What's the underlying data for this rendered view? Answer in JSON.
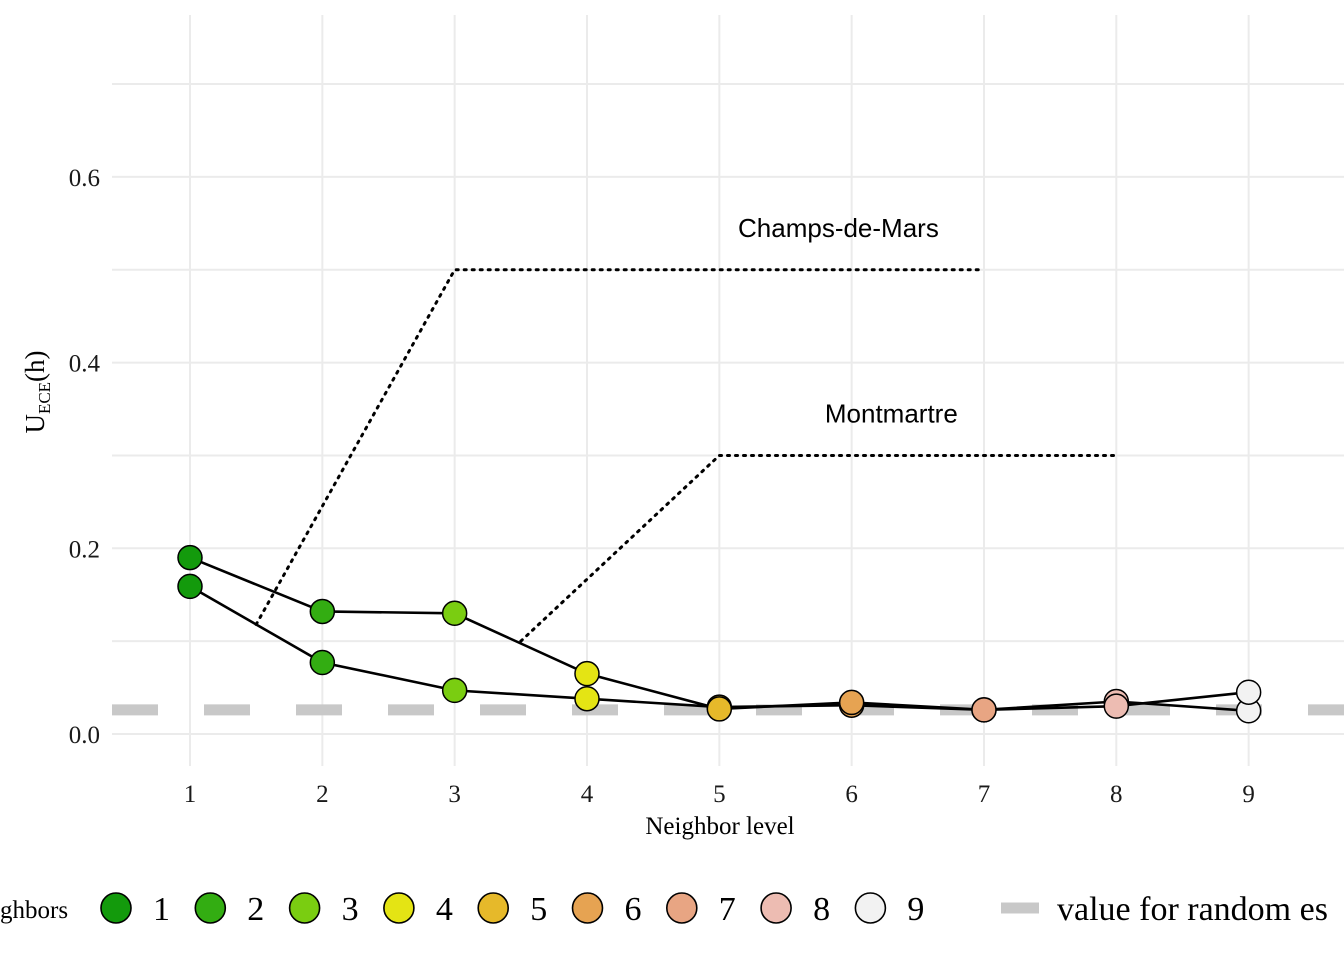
{
  "chart_data": {
    "type": "line",
    "title": "",
    "xlabel": "Neighbor level",
    "ylabel_main": "U",
    "ylabel_sub": "ECE",
    "ylabel_suffix": "(h)",
    "x_ticks": [
      "1",
      "2",
      "3",
      "4",
      "5",
      "6",
      "7",
      "8",
      "9"
    ],
    "y_ticks": [
      "0.0",
      "0.2",
      "0.4",
      "0.6"
    ],
    "xlim": [
      0.4,
      9.6
    ],
    "ylim": [
      -0.03,
      0.72
    ],
    "grid": true,
    "series": [
      {
        "name": "Champs-de-Mars",
        "x": [
          1,
          2,
          3,
          4,
          5,
          6,
          7,
          8,
          9
        ],
        "y": [
          0.159,
          0.077,
          0.047,
          0.038,
          0.029,
          0.031,
          0.026,
          0.035,
          0.025
        ]
      },
      {
        "name": "Montmartre",
        "x": [
          1,
          2,
          3,
          4,
          5,
          6,
          7,
          8,
          9
        ],
        "y": [
          0.19,
          0.132,
          0.13,
          0.065,
          0.027,
          0.034,
          0.026,
          0.03,
          0.045
        ]
      }
    ],
    "reference_line": {
      "label": "value for random es",
      "y": 0.026,
      "color": "#c8c8c8"
    },
    "annotations": [
      {
        "text": "Champs-de-Mars",
        "x": 5.9,
        "y": 0.545
      },
      {
        "text": "Montmartre",
        "x": 6.3,
        "y": 0.345
      }
    ],
    "leader_lines": [
      {
        "points": [
          [
            1.5,
            0.118
          ],
          [
            3.0,
            0.5
          ],
          [
            7.0,
            0.5
          ]
        ]
      },
      {
        "points": [
          [
            3.5,
            0.1
          ],
          [
            5.0,
            0.3
          ],
          [
            8.0,
            0.3
          ]
        ]
      }
    ],
    "legend": {
      "title": "ghbors",
      "placement": "bottom",
      "entries": [
        {
          "label": "1",
          "color": "#139a0c"
        },
        {
          "label": "2",
          "color": "#33ad12"
        },
        {
          "label": "3",
          "color": "#7acd11"
        },
        {
          "label": "4",
          "color": "#e4e414"
        },
        {
          "label": "5",
          "color": "#e6b92a"
        },
        {
          "label": "6",
          "color": "#e6a352"
        },
        {
          "label": "7",
          "color": "#e8a583"
        },
        {
          "label": "8",
          "color": "#edbcb2"
        },
        {
          "label": "9",
          "color": "#f2f2f2"
        }
      ]
    }
  }
}
